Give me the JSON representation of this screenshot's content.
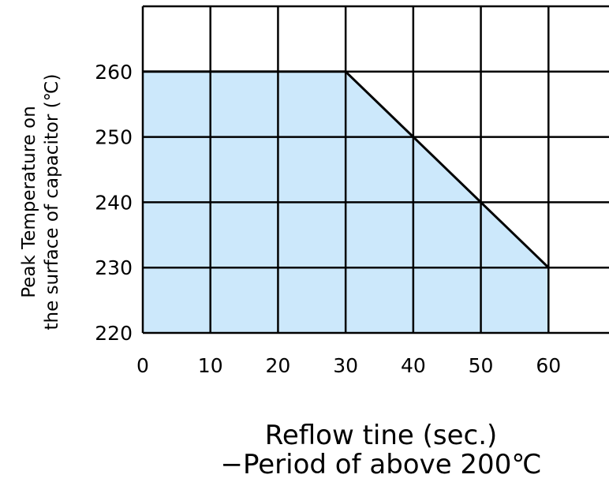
{
  "chart_data": {
    "type": "area",
    "x": [
      0,
      30,
      40,
      50,
      60
    ],
    "y": [
      260,
      260,
      250,
      240,
      230
    ],
    "xlim": [
      0,
      70
    ],
    "ylim": [
      220,
      270
    ],
    "xticks": [
      0,
      10,
      20,
      30,
      40,
      50,
      60
    ],
    "yticks": [
      220,
      230,
      240,
      250,
      260
    ],
    "grid": true,
    "fill_color": "#cce8fb",
    "line_color": "#000000",
    "ylabel_lines": [
      "Peak Temperature on",
      "the surface of capacitor (℃)"
    ],
    "xlabel_lines": [
      "Reflow tine (sec.)",
      "−Period of above 200℃"
    ]
  }
}
